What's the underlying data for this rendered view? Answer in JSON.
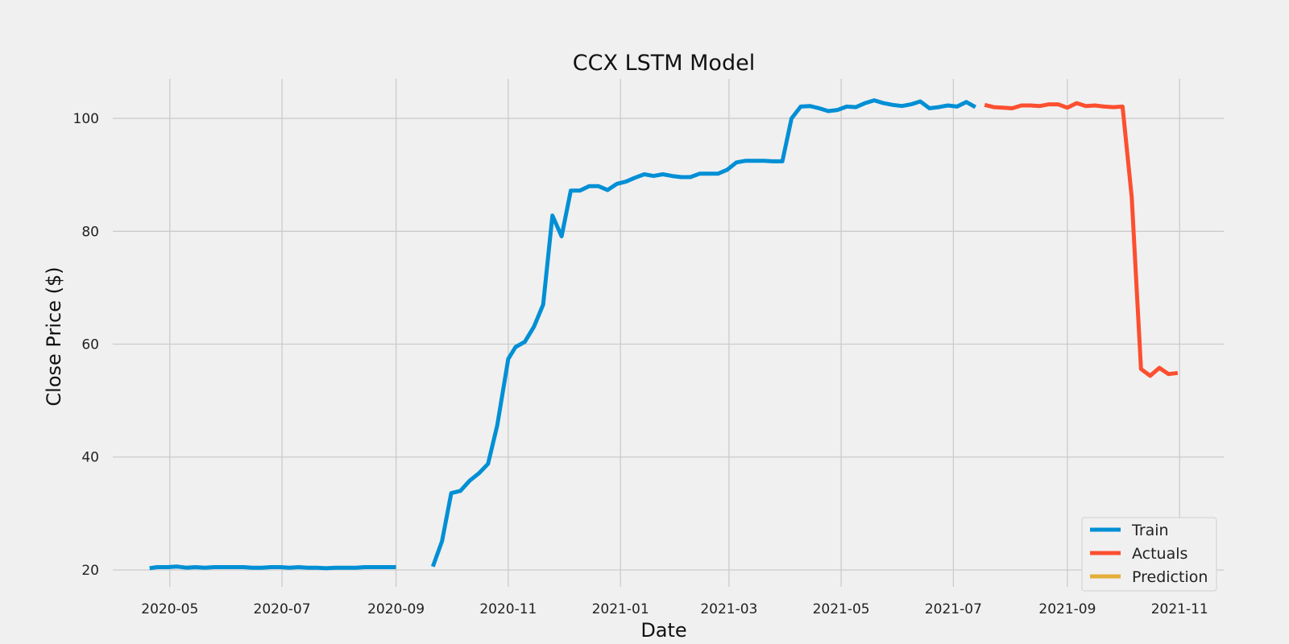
{
  "chart_data": {
    "type": "line",
    "title": "CCX LSTM Model",
    "xlabel": "Date",
    "ylabel": "Close Price ($)",
    "xlim": [
      "2020-03-31",
      "2021-11-25"
    ],
    "ylim": [
      17,
      107
    ],
    "x_ticks": [
      "2020-05",
      "2020-07",
      "2020-09",
      "2020-11",
      "2021-01",
      "2021-03",
      "2021-05",
      "2021-07",
      "2021-09",
      "2021-11"
    ],
    "y_ticks": [
      20,
      40,
      60,
      80,
      100
    ],
    "grid": true,
    "legend_position": "bottom-right",
    "series": [
      {
        "name": "Train",
        "color": "#008fd5",
        "segments": [
          {
            "x": [
              "2020-04-20",
              "2020-04-24",
              "2020-04-30",
              "2020-05-05",
              "2020-05-10",
              "2020-05-15",
              "2020-05-20",
              "2020-05-25",
              "2020-05-30",
              "2020-06-05",
              "2020-06-10",
              "2020-06-15",
              "2020-06-20",
              "2020-06-25",
              "2020-06-30",
              "2020-07-05",
              "2020-07-10",
              "2020-07-15",
              "2020-07-20",
              "2020-07-25",
              "2020-07-30",
              "2020-08-05",
              "2020-08-10",
              "2020-08-15",
              "2020-08-20",
              "2020-08-25",
              "2020-09-01"
            ],
            "y": [
              20.3,
              20.5,
              20.5,
              20.6,
              20.4,
              20.5,
              20.4,
              20.5,
              20.5,
              20.5,
              20.5,
              20.4,
              20.4,
              20.5,
              20.5,
              20.4,
              20.5,
              20.4,
              20.4,
              20.3,
              20.4,
              20.4,
              20.4,
              20.5,
              20.5,
              20.5,
              20.5
            ]
          },
          {
            "x": [
              "2020-09-21",
              "2020-09-26",
              "2020-10-01",
              "2020-10-06",
              "2020-10-11",
              "2020-10-16",
              "2020-10-21",
              "2020-10-26",
              "2020-11-01",
              "2020-11-05",
              "2020-11-10",
              "2020-11-15",
              "2020-11-20",
              "2020-11-25",
              "2020-11-30",
              "2020-12-05",
              "2020-12-10",
              "2020-12-15",
              "2020-12-20",
              "2020-12-25",
              "2020-12-30",
              "2021-01-04",
              "2021-01-09",
              "2021-01-14",
              "2021-01-19",
              "2021-01-24",
              "2021-01-29",
              "2021-02-03",
              "2021-02-08",
              "2021-02-13",
              "2021-02-18",
              "2021-02-23",
              "2021-02-28",
              "2021-03-05",
              "2021-03-10",
              "2021-03-15",
              "2021-03-20",
              "2021-03-25",
              "2021-03-30",
              "2021-04-04",
              "2021-04-09",
              "2021-04-14",
              "2021-04-19",
              "2021-04-24",
              "2021-04-29",
              "2021-05-04",
              "2021-05-09",
              "2021-05-14",
              "2021-05-19",
              "2021-05-24",
              "2021-05-29",
              "2021-06-03",
              "2021-06-08",
              "2021-06-13",
              "2021-06-18",
              "2021-06-23",
              "2021-06-28",
              "2021-07-03",
              "2021-07-08",
              "2021-07-13"
            ],
            "y": [
              20.6,
              25.1,
              33.6,
              34.0,
              35.8,
              37.1,
              38.8,
              45.6,
              57.4,
              59.5,
              60.4,
              63.1,
              67.0,
              82.8,
              79.1,
              87.2,
              87.2,
              88.0,
              88.0,
              87.3,
              88.4,
              88.8,
              89.5,
              90.1,
              89.8,
              90.1,
              89.8,
              89.6,
              89.6,
              90.2,
              90.2,
              90.2,
              90.9,
              92.2,
              92.5,
              92.5,
              92.5,
              92.4,
              92.4,
              100.0,
              102.1,
              102.2,
              101.8,
              101.3,
              101.5,
              102.1,
              102.0,
              102.7,
              103.2,
              102.7,
              102.4,
              102.2,
              102.5,
              103.0,
              101.8,
              102.0,
              102.3,
              102.1,
              102.9,
              102.0
            ]
          }
        ]
      },
      {
        "name": "Actuals",
        "color": "#fc4f30",
        "segments": [
          {
            "x": [
              "2021-07-18",
              "2021-07-23",
              "2021-07-28",
              "2021-08-02",
              "2021-08-07",
              "2021-08-12",
              "2021-08-17",
              "2021-08-22",
              "2021-08-27",
              "2021-09-01",
              "2021-09-06",
              "2021-09-11",
              "2021-09-16",
              "2021-09-21",
              "2021-09-26",
              "2021-10-01",
              "2021-10-06",
              "2021-10-11",
              "2021-10-16",
              "2021-10-21",
              "2021-10-26",
              "2021-10-31"
            ],
            "y": [
              102.4,
              102.0,
              101.9,
              101.8,
              102.3,
              102.3,
              102.2,
              102.5,
              102.5,
              101.9,
              102.7,
              102.2,
              102.3,
              102.1,
              102.0,
              102.1,
              86.0,
              55.6,
              54.4,
              55.8,
              54.7,
              54.9
            ]
          }
        ]
      },
      {
        "name": "Prediction",
        "color": "#e5ae38",
        "segments": []
      }
    ]
  }
}
